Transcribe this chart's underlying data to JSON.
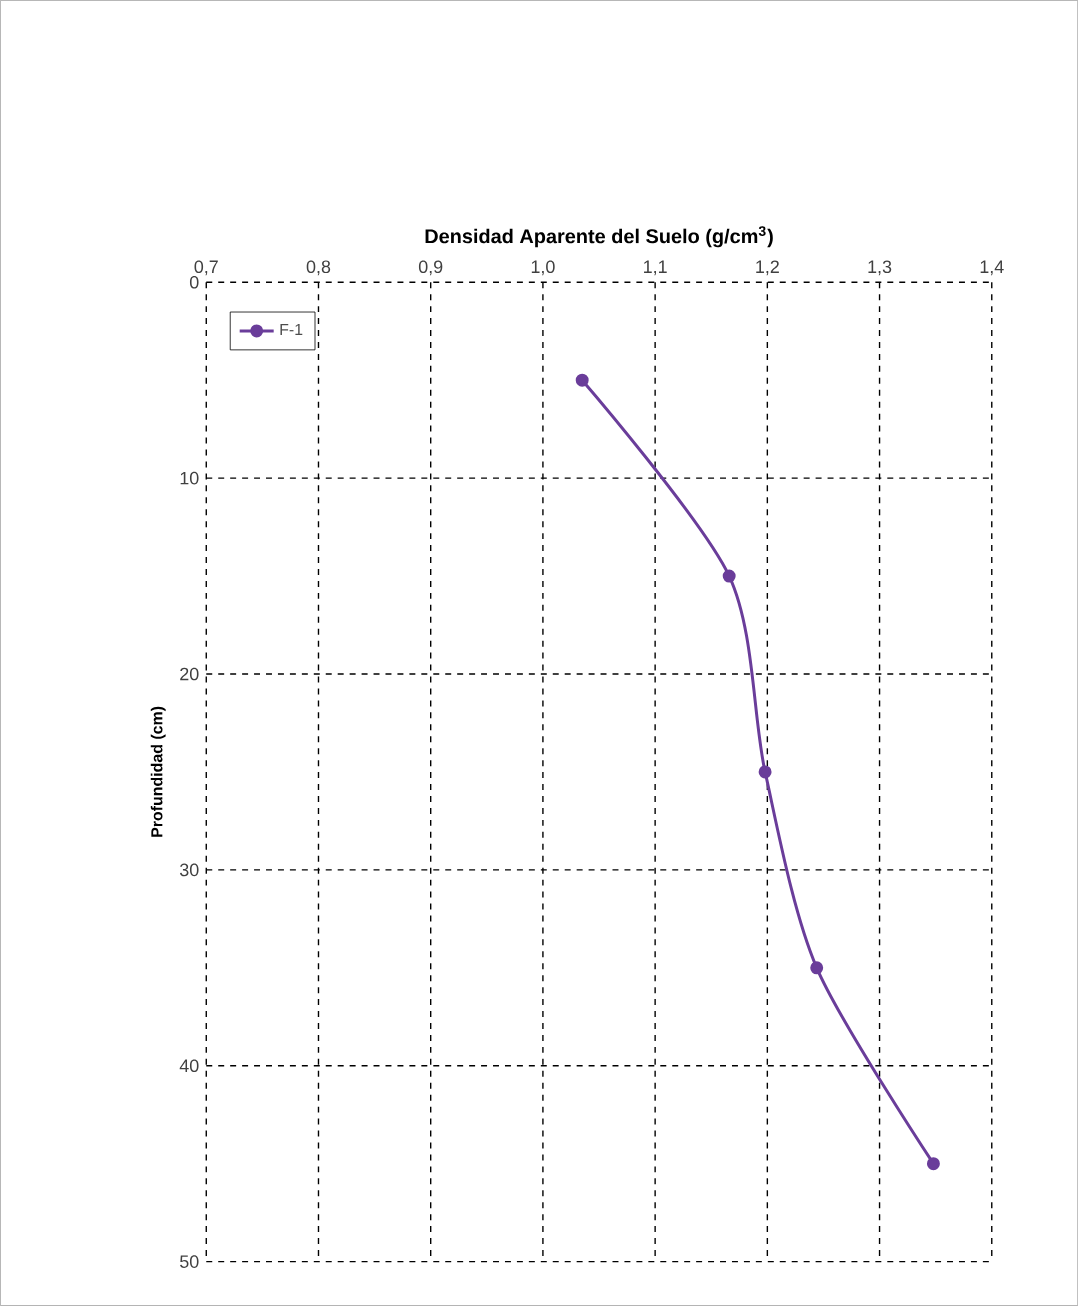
{
  "chart_data": {
    "type": "line",
    "title": "Densidad Aparente del Suelo (g/cm$^{3}$)",
    "ylabel": "Profundidad  (cm)",
    "series": [
      {
        "name": "F-1",
        "color": "#6a3d9a",
        "x": [
          1.035,
          1.166,
          1.198,
          1.244,
          1.348
        ],
        "values": [
          5,
          15,
          25,
          35,
          45
        ]
      }
    ],
    "xlim": [
      0.7,
      1.4
    ],
    "xticks": [
      {
        "value": 0.7,
        "label": "0,7"
      },
      {
        "value": 0.8,
        "label": "0,8"
      },
      {
        "value": 0.9,
        "label": "0,9"
      },
      {
        "value": 1.0,
        "label": "1,0"
      },
      {
        "value": 1.1,
        "label": "1,1"
      },
      {
        "value": 1.2,
        "label": "1,2"
      },
      {
        "value": 1.3,
        "label": "1,3"
      },
      {
        "value": 1.4,
        "label": "1,4"
      }
    ],
    "ylim": [
      50,
      0
    ],
    "yticks": [
      0,
      10,
      20,
      30,
      40,
      50
    ],
    "grid": true,
    "legend": "top left",
    "marker": "circle",
    "line_style": "solid"
  }
}
